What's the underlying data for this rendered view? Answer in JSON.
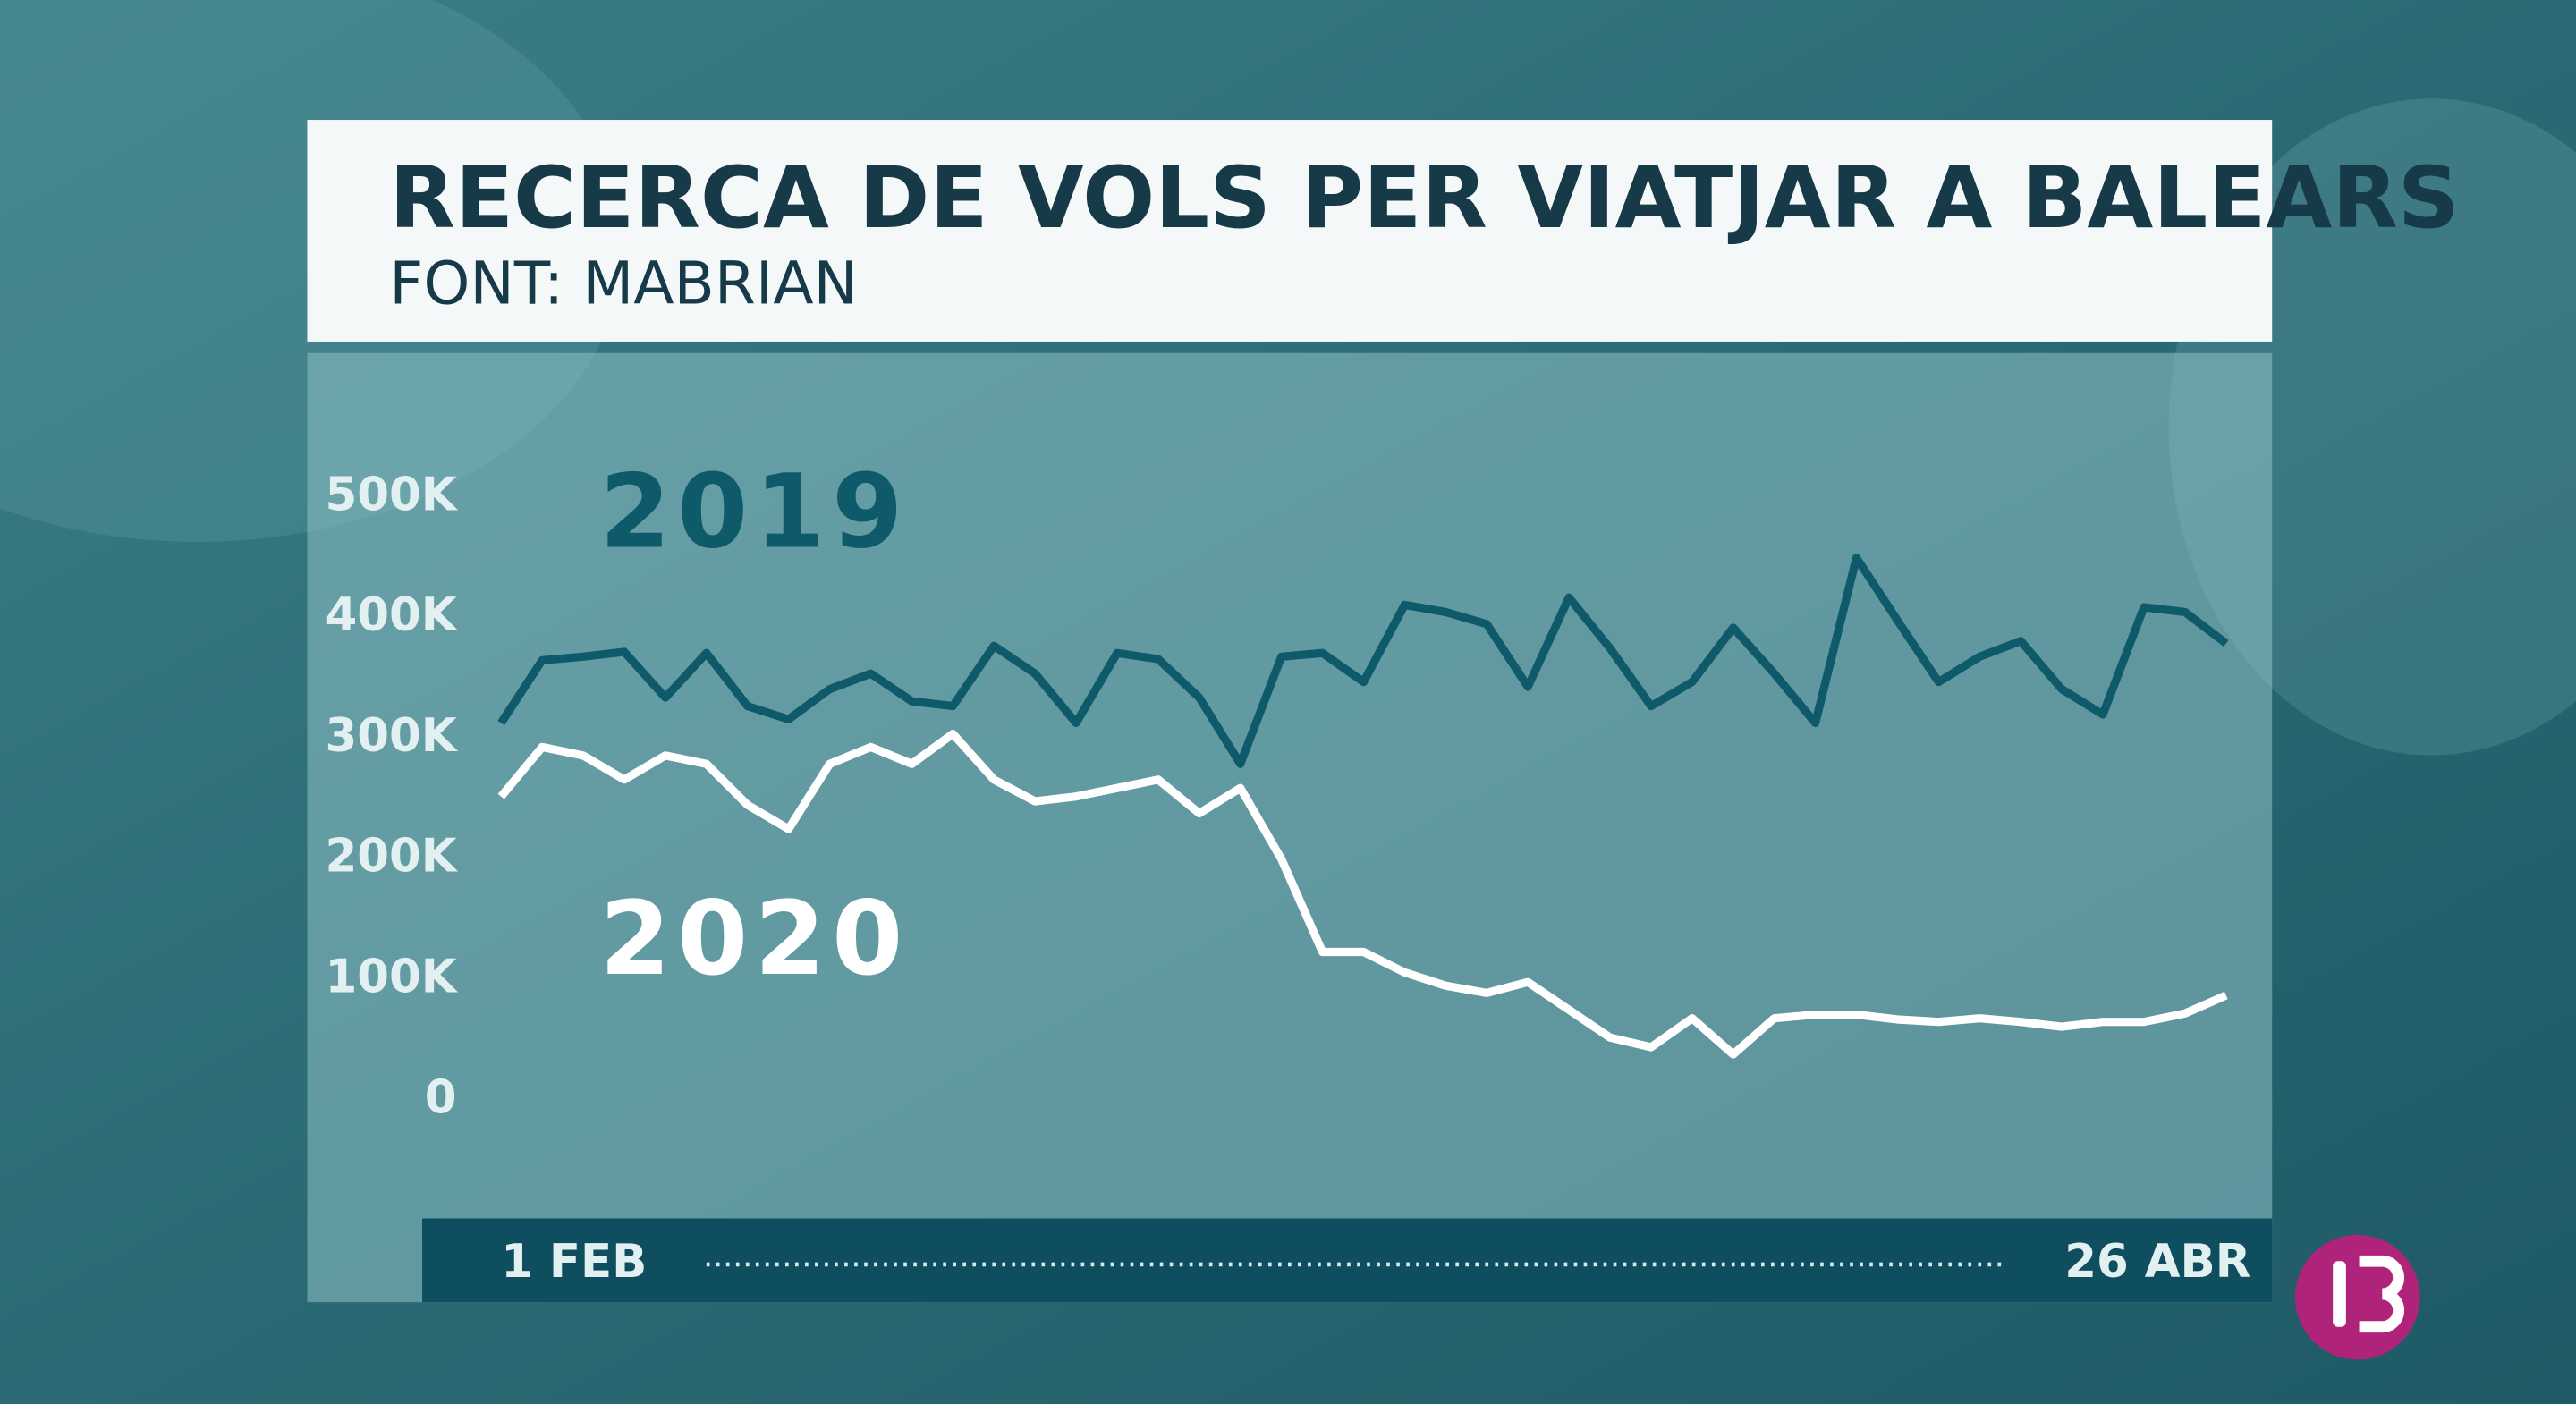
{
  "chart_data": {
    "type": "line",
    "title": "RECERCA DE VOLS PER VIATJAR A BALEARS",
    "subtitle": "FONT: MABRIAN",
    "categories": [
      "1 FEB",
      null,
      null,
      null,
      null,
      null,
      null,
      null,
      null,
      null,
      null,
      null,
      null,
      null,
      null,
      null,
      null,
      null,
      null,
      null,
      null,
      null,
      null,
      null,
      null,
      null,
      null,
      null,
      null,
      null,
      null,
      null,
      null,
      null,
      null,
      null,
      null,
      null,
      null,
      null,
      null,
      null,
      "26 ABR"
    ],
    "series": [
      {
        "name": "2019",
        "color": "#0e5a6a",
        "values": [
          313000,
          365000,
          368000,
          372000,
          334000,
          371000,
          327000,
          316000,
          341000,
          354000,
          331000,
          327000,
          377000,
          354000,
          313000,
          371000,
          366000,
          334000,
          279000,
          368000,
          371000,
          347000,
          411000,
          405000,
          395000,
          343000,
          417000,
          375000,
          327000,
          347000,
          392000,
          354000,
          313000,
          450000,
          398000,
          347000,
          368000,
          381000,
          341000,
          320000,
          409000,
          405000,
          379000
        ]
      },
      {
        "name": "2020",
        "color": "#ffffff",
        "values": [
          252000,
          293000,
          286000,
          266000,
          286000,
          279000,
          245000,
          225000,
          279000,
          293000,
          279000,
          304000,
          266000,
          248000,
          252000,
          259000,
          266000,
          238000,
          259000,
          200000,
          123000,
          123000,
          106000,
          95000,
          89000,
          98000,
          75000,
          52000,
          44000,
          68000,
          38000,
          68000,
          71000,
          71000,
          67000,
          65000,
          68000,
          65000,
          61000,
          65000,
          65000,
          72000,
          87000
        ]
      }
    ],
    "ylim": [
      0,
      500000
    ],
    "yticks": [
      {
        "value": 0,
        "label": "0"
      },
      {
        "value": 100000,
        "label": "100K"
      },
      {
        "value": 200000,
        "label": "200K"
      },
      {
        "value": 300000,
        "label": "300K"
      },
      {
        "value": 400000,
        "label": "400K"
      },
      {
        "value": 500000,
        "label": "500K"
      }
    ],
    "grid": false
  }
}
